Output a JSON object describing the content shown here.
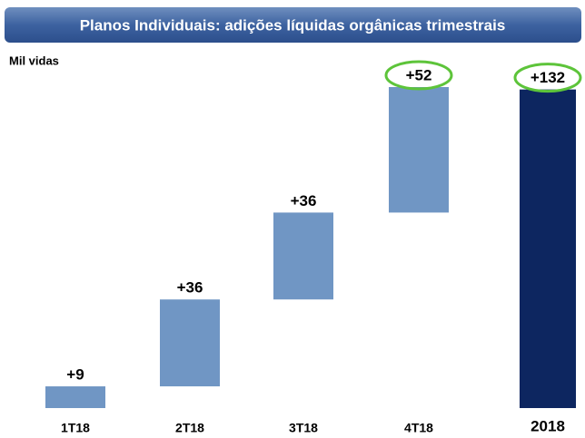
{
  "chart_data": {
    "type": "waterfall",
    "title": "Planos Individuais: adições líquidas orgânicas trimestrais",
    "subtitle": "Mil vidas",
    "categories": [
      "1T18",
      "2T18",
      "3T18",
      "4T18",
      "2018"
    ],
    "values": [
      9,
      36,
      36,
      52,
      132
    ],
    "value_labels": [
      "+9",
      "+36",
      "+36",
      "+52",
      "+132"
    ],
    "measure": [
      "relative",
      "relative",
      "relative",
      "relative",
      "total"
    ],
    "color": "#7096c4",
    "total_color": "#0d2660"
  }
}
